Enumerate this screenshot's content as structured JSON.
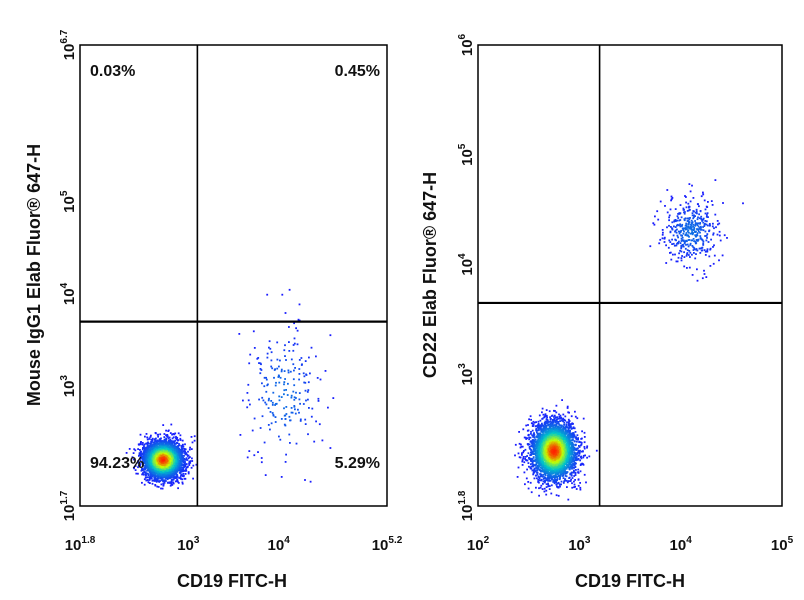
{
  "chart_data": [
    {
      "type": "scatter",
      "xlabel": "CD19 FITC-H",
      "ylabel": "Mouse IgG1 Elab Fluor® 647-H",
      "x_scale": "log",
      "y_scale": "log",
      "xlim_log10": [
        1.8,
        5.2
      ],
      "ylim_log10": [
        1.7,
        6.7
      ],
      "x_ticks": [
        {
          "base": "10",
          "exp": "1.8",
          "value": 1.8
        },
        {
          "base": "10",
          "exp": "3",
          "value": 3
        },
        {
          "base": "10",
          "exp": "4",
          "value": 4
        },
        {
          "base": "10",
          "exp": "5.2",
          "value": 5.2
        }
      ],
      "y_ticks": [
        {
          "base": "10",
          "exp": "1.7",
          "value": 1.7
        },
        {
          "base": "10",
          "exp": "3",
          "value": 3
        },
        {
          "base": "10",
          "exp": "4",
          "value": 4
        },
        {
          "base": "10",
          "exp": "5",
          "value": 5
        },
        {
          "base": "10",
          "exp": "6.7",
          "value": 6.7
        }
      ],
      "gate_log10": {
        "x": 3.1,
        "y": 3.7
      },
      "quadrants": {
        "upper_left": "0.03%",
        "upper_right": "0.45%",
        "lower_left": "94.23%",
        "lower_right": "5.29%"
      },
      "populations": [
        {
          "center_log10": [
            2.72,
            2.2
          ],
          "spread_log10": [
            0.11,
            0.1
          ],
          "share": 0.9423,
          "density": "high"
        },
        {
          "center_log10": [
            4.05,
            2.9
          ],
          "spread_log10": [
            0.22,
            0.38
          ],
          "share": 0.0529,
          "density": "low"
        }
      ],
      "colors": {
        "low": "#1a1aff",
        "mid": "#00c8c8",
        "high_mid": "#c8ff00",
        "peak": "#ff2000"
      }
    },
    {
      "type": "scatter",
      "xlabel": "CD19 FITC-H",
      "ylabel": "CD22 Elab Fluor® 647-H",
      "x_scale": "log",
      "y_scale": "log",
      "xlim_log10": [
        2,
        5
      ],
      "ylim_log10": [
        1.8,
        6
      ],
      "x_ticks": [
        {
          "base": "10",
          "exp": "2",
          "value": 2
        },
        {
          "base": "10",
          "exp": "3",
          "value": 3
        },
        {
          "base": "10",
          "exp": "4",
          "value": 4
        },
        {
          "base": "10",
          "exp": "5",
          "value": 5
        }
      ],
      "y_ticks": [
        {
          "base": "10",
          "exp": "1.8",
          "value": 1.8
        },
        {
          "base": "10",
          "exp": "3",
          "value": 3
        },
        {
          "base": "10",
          "exp": "4",
          "value": 4
        },
        {
          "base": "10",
          "exp": "5",
          "value": 5
        },
        {
          "base": "10",
          "exp": "6",
          "value": 6
        }
      ],
      "gate_log10": {
        "x": 3.2,
        "y": 3.65
      },
      "quadrants": {},
      "populations": [
        {
          "center_log10": [
            2.75,
            2.3
          ],
          "spread_log10": [
            0.11,
            0.13
          ],
          "share": 0.9,
          "density": "high"
        },
        {
          "center_log10": [
            4.1,
            4.3
          ],
          "spread_log10": [
            0.14,
            0.14
          ],
          "share": 0.1,
          "density": "low"
        }
      ],
      "colors": {
        "low": "#1a1aff",
        "mid": "#00c8c8",
        "high_mid": "#c8ff00",
        "peak": "#ff2000"
      }
    }
  ]
}
